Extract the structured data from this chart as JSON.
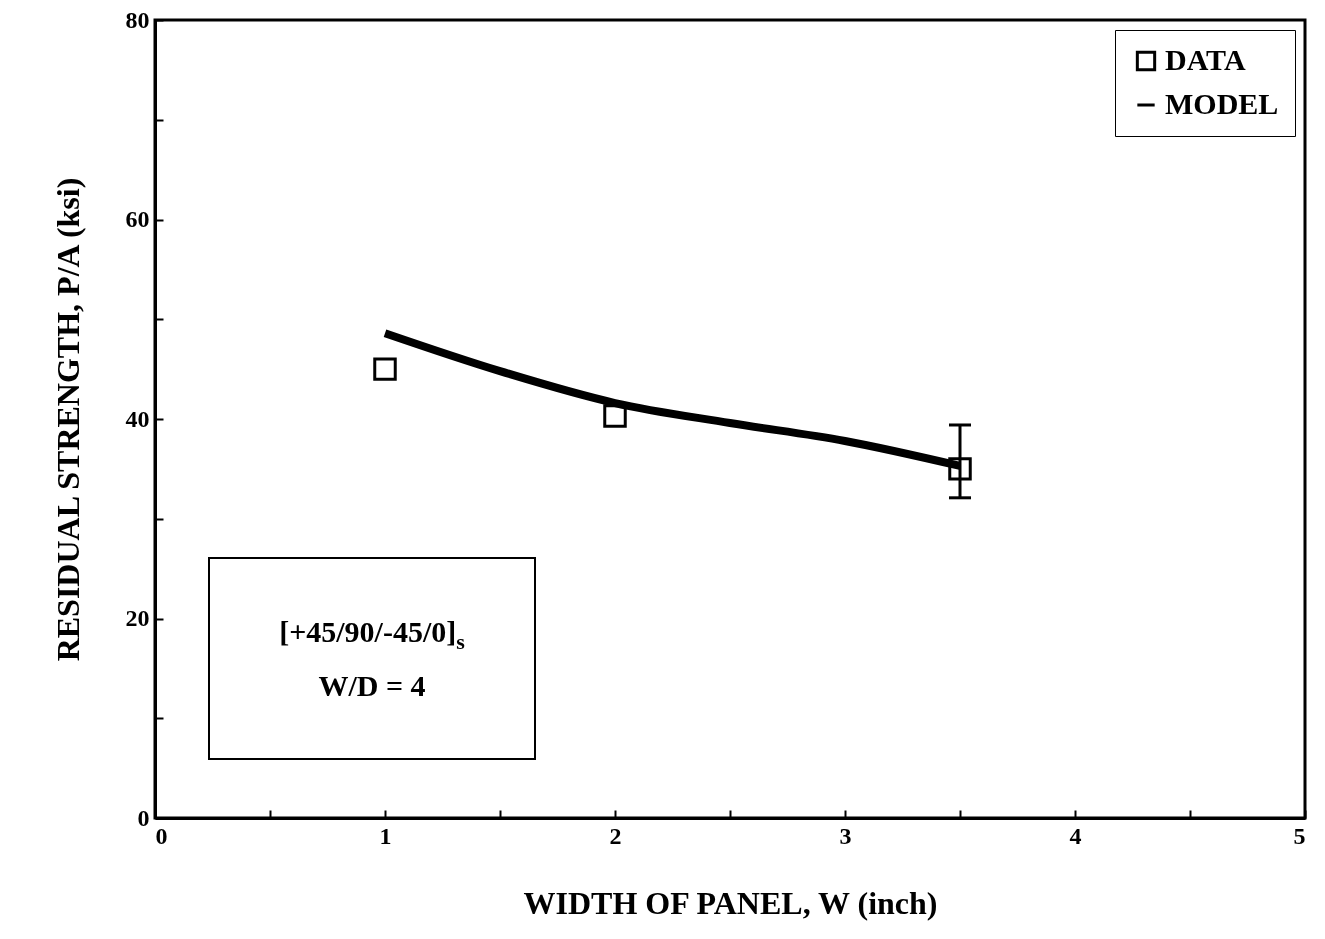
{
  "chart_data": {
    "type": "scatter",
    "xlabel": "WIDTH OF PANEL, W (inch)",
    "ylabel": "RESIDUAL STRENGTH, P/A (ksi)",
    "xlim": [
      0,
      5
    ],
    "xticks": [
      0,
      {
        "value": 0.5,
        "label": null
      },
      1,
      {
        "value": 1.5,
        "label": null
      },
      2,
      {
        "value": 2.5,
        "label": null
      },
      3,
      {
        "value": 3.5,
        "label": null
      },
      4,
      {
        "value": 4.5,
        "label": null
      },
      5
    ],
    "ylim": [
      0,
      80
    ],
    "yticks": [
      0,
      {
        "value": 10,
        "label": null
      },
      20,
      {
        "value": 30,
        "label": null
      },
      40,
      {
        "value": 50,
        "label": null
      },
      60,
      {
        "value": 70,
        "label": null
      },
      80
    ],
    "legend": "top right",
    "annotations": [
      "[+45/90/-45/0]$_{s}$",
      "W/D = 4"
    ],
    "series": [
      {
        "name": "DATA",
        "marker": "square",
        "color": "#000000",
        "x": [
          1,
          2,
          3.5
        ],
        "values": [
          45,
          40.3,
          35
        ],
        "errors": [
          null,
          null,
          [
            32.1,
            39.4
          ]
        ]
      },
      {
        "name": "MODEL",
        "type": "line",
        "color": "#000000",
        "x": [
          1,
          1.5,
          2,
          2.5,
          3,
          3.5
        ],
        "values": [
          48.6,
          44.8,
          41.6,
          39.6,
          37.8,
          35.3
        ]
      }
    ]
  }
}
